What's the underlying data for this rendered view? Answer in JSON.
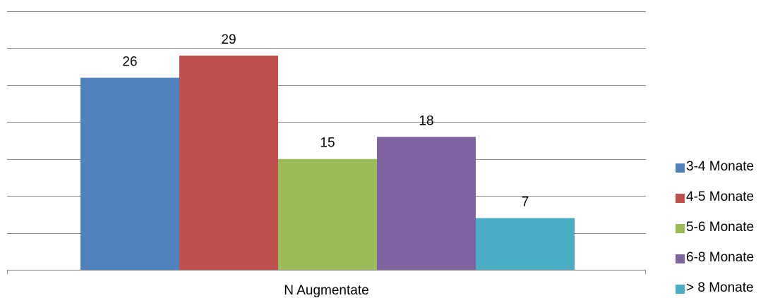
{
  "chart_data": {
    "type": "bar",
    "categories": [
      "N Augmentate"
    ],
    "series": [
      {
        "name": "3-4 Monate",
        "values": [
          26
        ],
        "color": "#4F81BD"
      },
      {
        "name": "4-5 Monate",
        "values": [
          29
        ],
        "color": "#C0504D"
      },
      {
        "name": "5-6 Monate",
        "values": [
          15
        ],
        "color": "#9BBB59"
      },
      {
        "name": "6-8 Monate",
        "values": [
          18
        ],
        "color": "#8064A2"
      },
      {
        "name": "> 8 Monate",
        "values": [
          7
        ],
        "color": "#4BACC6"
      }
    ],
    "ylim": [
      0,
      35
    ],
    "grid": true,
    "legend_position": "right",
    "data_labels": true
  }
}
